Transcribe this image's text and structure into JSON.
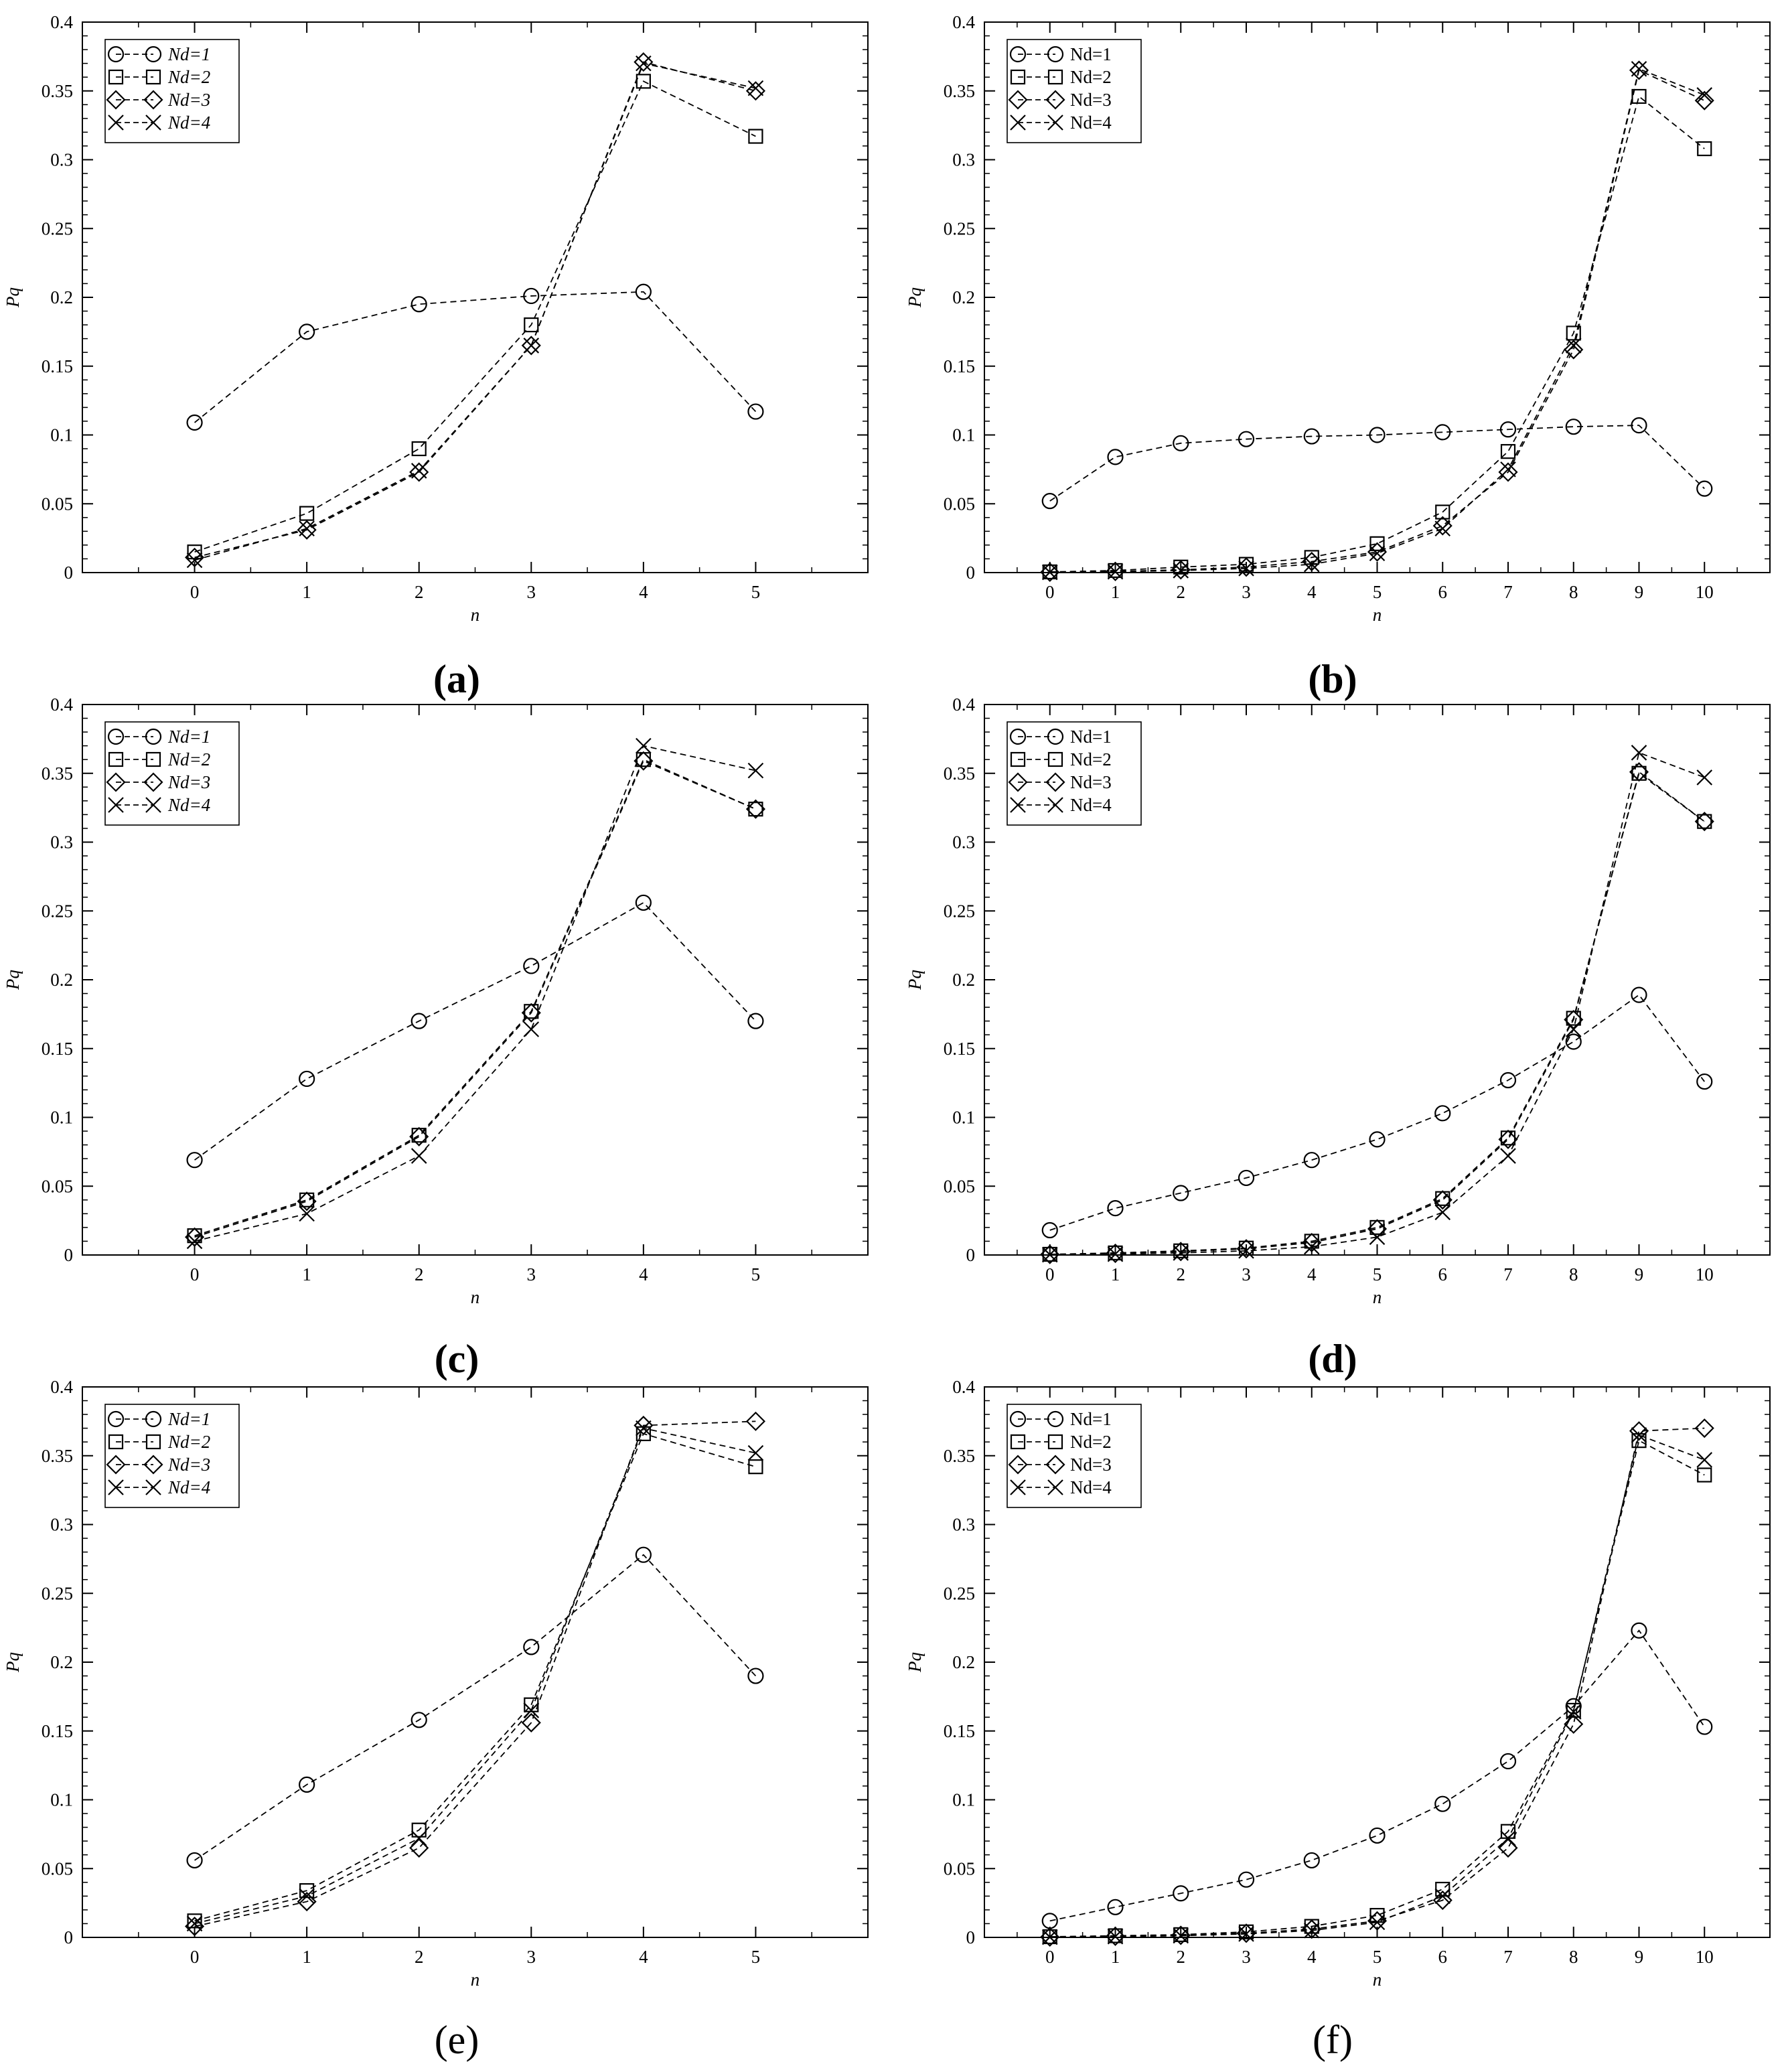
{
  "chart_data": [
    {
      "panel": "(a)",
      "type": "line",
      "xlabel": "n",
      "ylabel": "Pq",
      "x": [
        0,
        1,
        2,
        3,
        4,
        5
      ],
      "xticks": [
        "0",
        "1",
        "2",
        "3",
        "4",
        "5"
      ],
      "xlim": [
        -1,
        6
      ],
      "ylim": [
        0,
        0.4
      ],
      "yticks": [
        "0",
        "0.05",
        "0.1",
        "0.15",
        "0.2",
        "0.25",
        "0.3",
        "0.35",
        "0.4"
      ],
      "legend_italic": true,
      "legend_position": "top-left",
      "series": [
        {
          "name": "Nd=1",
          "marker": "circle",
          "values": [
            0.109,
            0.175,
            0.195,
            0.201,
            0.204,
            0.117
          ]
        },
        {
          "name": "Nd=2",
          "marker": "square",
          "values": [
            0.015,
            0.043,
            0.09,
            0.18,
            0.357,
            0.317
          ]
        },
        {
          "name": "Nd=3",
          "marker": "diamond",
          "values": [
            0.011,
            0.031,
            0.073,
            0.165,
            0.371,
            0.35
          ]
        },
        {
          "name": "Nd=4",
          "marker": "x",
          "values": [
            0.009,
            0.032,
            0.074,
            0.165,
            0.37,
            0.352
          ]
        }
      ]
    },
    {
      "panel": "(b)",
      "type": "line",
      "xlabel": "n",
      "ylabel": "Pq",
      "x": [
        0,
        1,
        2,
        3,
        4,
        5,
        6,
        7,
        8,
        9,
        10
      ],
      "xticks": [
        "0",
        "1",
        "2",
        "3",
        "4",
        "5",
        "6",
        "7",
        "8",
        "9",
        "10"
      ],
      "xlim": [
        -1,
        11
      ],
      "ylim": [
        0,
        0.4
      ],
      "yticks": [
        "0",
        "0.05",
        "0.1",
        "0.15",
        "0.2",
        "0.25",
        "0.3",
        "0.35",
        "0.4"
      ],
      "legend_italic": false,
      "legend_position": "top-left",
      "series": [
        {
          "name": "Nd=1",
          "marker": "circle",
          "values": [
            0.052,
            0.084,
            0.094,
            0.097,
            0.099,
            0.1,
            0.102,
            0.104,
            0.106,
            0.107,
            0.061
          ]
        },
        {
          "name": "Nd=2",
          "marker": "square",
          "values": [
            0.0005,
            0.0015,
            0.004,
            0.006,
            0.011,
            0.021,
            0.044,
            0.088,
            0.174,
            0.346,
            0.308
          ]
        },
        {
          "name": "Nd=3",
          "marker": "diamond",
          "values": [
            0.0003,
            0.0008,
            0.002,
            0.004,
            0.008,
            0.015,
            0.034,
            0.073,
            0.162,
            0.365,
            0.343
          ]
        },
        {
          "name": "Nd=4",
          "marker": "x",
          "values": [
            0.0002,
            0.0006,
            0.0015,
            0.003,
            0.006,
            0.014,
            0.032,
            0.075,
            0.165,
            0.366,
            0.347
          ]
        }
      ]
    },
    {
      "panel": "(c)",
      "type": "line",
      "xlabel": "n",
      "ylabel": "Pq",
      "x": [
        0,
        1,
        2,
        3,
        4,
        5
      ],
      "xticks": [
        "0",
        "1",
        "2",
        "3",
        "4",
        "5"
      ],
      "xlim": [
        -1,
        6
      ],
      "ylim": [
        0,
        0.4
      ],
      "yticks": [
        "0",
        "0.05",
        "0.1",
        "0.15",
        "0.2",
        "0.25",
        "0.3",
        "0.35",
        "0.4"
      ],
      "legend_italic": true,
      "legend_position": "top-left",
      "series": [
        {
          "name": "Nd=1",
          "marker": "circle",
          "values": [
            0.069,
            0.128,
            0.17,
            0.21,
            0.256,
            0.17
          ]
        },
        {
          "name": "Nd=2",
          "marker": "square",
          "values": [
            0.014,
            0.04,
            0.087,
            0.177,
            0.36,
            0.324
          ]
        },
        {
          "name": "Nd=3",
          "marker": "diamond",
          "values": [
            0.013,
            0.039,
            0.086,
            0.176,
            0.359,
            0.324
          ]
        },
        {
          "name": "Nd=4",
          "marker": "x",
          "values": [
            0.01,
            0.03,
            0.072,
            0.164,
            0.37,
            0.352
          ]
        }
      ]
    },
    {
      "panel": "(d)",
      "type": "line",
      "xlabel": "n",
      "ylabel": "Pq",
      "x": [
        0,
        1,
        2,
        3,
        4,
        5,
        6,
        7,
        8,
        9,
        10
      ],
      "xticks": [
        "0",
        "1",
        "2",
        "3",
        "4",
        "5",
        "6",
        "7",
        "8",
        "9",
        "10"
      ],
      "xlim": [
        -1,
        11
      ],
      "ylim": [
        0,
        0.4
      ],
      "yticks": [
        "0",
        "0.05",
        "0.1",
        "0.15",
        "0.2",
        "0.25",
        "0.3",
        "0.35",
        "0.4"
      ],
      "legend_italic": false,
      "legend_position": "top-left",
      "series": [
        {
          "name": "Nd=1",
          "marker": "circle",
          "values": [
            0.018,
            0.034,
            0.045,
            0.056,
            0.069,
            0.084,
            0.103,
            0.127,
            0.155,
            0.189,
            0.126
          ]
        },
        {
          "name": "Nd=2",
          "marker": "square",
          "values": [
            0.0005,
            0.0015,
            0.003,
            0.005,
            0.01,
            0.02,
            0.041,
            0.085,
            0.172,
            0.35,
            0.315
          ]
        },
        {
          "name": "Nd=3",
          "marker": "diamond",
          "values": [
            0.0004,
            0.0012,
            0.0025,
            0.0045,
            0.009,
            0.019,
            0.04,
            0.084,
            0.171,
            0.351,
            0.315
          ]
        },
        {
          "name": "Nd=4",
          "marker": "x",
          "values": [
            0.0002,
            0.0006,
            0.0015,
            0.003,
            0.006,
            0.013,
            0.031,
            0.072,
            0.164,
            0.365,
            0.347
          ]
        }
      ]
    },
    {
      "panel": "(e)",
      "type": "line",
      "xlabel": "n",
      "ylabel": "Pq",
      "x": [
        0,
        1,
        2,
        3,
        4,
        5
      ],
      "xticks": [
        "0",
        "1",
        "2",
        "3",
        "4",
        "5"
      ],
      "xlim": [
        -1,
        6
      ],
      "ylim": [
        0,
        0.4
      ],
      "yticks": [
        "0",
        "0.05",
        "0.1",
        "0.15",
        "0.2",
        "0.25",
        "0.3",
        "0.35",
        "0.4"
      ],
      "legend_italic": true,
      "legend_position": "top-left",
      "series": [
        {
          "name": "Nd=1",
          "marker": "circle",
          "values": [
            0.056,
            0.111,
            0.158,
            0.211,
            0.278,
            0.19
          ]
        },
        {
          "name": "Nd=2",
          "marker": "square",
          "values": [
            0.012,
            0.034,
            0.078,
            0.169,
            0.366,
            0.342
          ]
        },
        {
          "name": "Nd=3",
          "marker": "diamond",
          "values": [
            0.008,
            0.026,
            0.065,
            0.156,
            0.372,
            0.375
          ]
        },
        {
          "name": "Nd=4",
          "marker": "x",
          "values": [
            0.01,
            0.03,
            0.072,
            0.165,
            0.37,
            0.352
          ]
        }
      ]
    },
    {
      "panel": "(f)",
      "type": "line",
      "xlabel": "n",
      "ylabel": "Pq",
      "x": [
        0,
        1,
        2,
        3,
        4,
        5,
        6,
        7,
        8,
        9,
        10
      ],
      "xticks": [
        "0",
        "1",
        "2",
        "3",
        "4",
        "5",
        "6",
        "7",
        "8",
        "9",
        "10"
      ],
      "xlim": [
        -1,
        11
      ],
      "ylim": [
        0,
        0.4
      ],
      "yticks": [
        "0",
        "0.05",
        "0.1",
        "0.15",
        "0.2",
        "0.25",
        "0.3",
        "0.35",
        "0.4"
      ],
      "legend_italic": false,
      "legend_position": "top-left",
      "series": [
        {
          "name": "Nd=1",
          "marker": "circle",
          "values": [
            0.012,
            0.022,
            0.032,
            0.042,
            0.056,
            0.074,
            0.097,
            0.128,
            0.168,
            0.223,
            0.153
          ]
        },
        {
          "name": "Nd=2",
          "marker": "square",
          "values": [
            0.0005,
            0.0012,
            0.002,
            0.004,
            0.008,
            0.016,
            0.035,
            0.077,
            0.165,
            0.361,
            0.336
          ]
        },
        {
          "name": "Nd=3",
          "marker": "diamond",
          "values": [
            0.0003,
            0.0008,
            0.0015,
            0.003,
            0.006,
            0.012,
            0.027,
            0.065,
            0.155,
            0.368,
            0.37
          ]
        },
        {
          "name": "Nd=4",
          "marker": "x",
          "values": [
            0.0002,
            0.0006,
            0.0012,
            0.0025,
            0.005,
            0.011,
            0.03,
            0.072,
            0.164,
            0.365,
            0.347
          ]
        }
      ]
    }
  ]
}
